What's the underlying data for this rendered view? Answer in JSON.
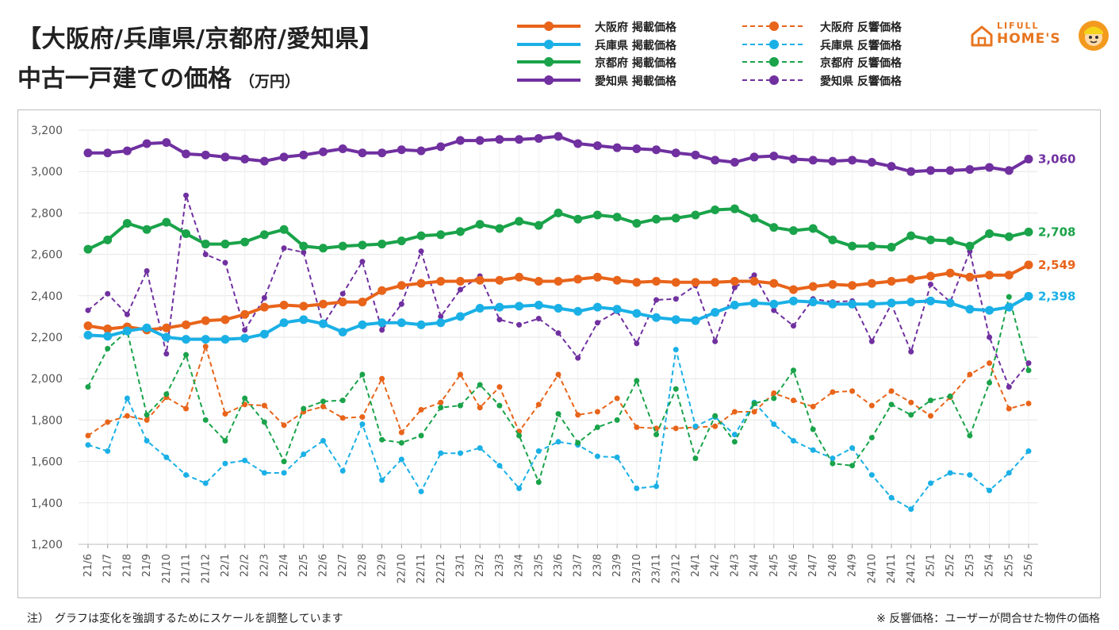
{
  "header": {
    "title_line1": "【大阪府/兵庫県/京都府/愛知県】",
    "title_line2": "中古一戸建ての価格",
    "unit": "（万円）"
  },
  "logo": {
    "top": "LIFULL",
    "main": "HOME'S"
  },
  "footnotes": {
    "left": "注）　グラフは変化を強調するためにスケールを調整しています",
    "right": "※ 反響価格：ユーザーが問合せた物件の価格"
  },
  "colors": {
    "osaka": "#e8641a",
    "hyogo": "#1ab0e6",
    "kyoto": "#1aa34a",
    "aichi": "#7030a0",
    "grid": "#e6e6e6"
  },
  "chart_data": {
    "type": "line",
    "ylim": [
      1200,
      3200
    ],
    "yticks": [
      1200,
      1400,
      1600,
      1800,
      2000,
      2200,
      2400,
      2600,
      2800,
      3000,
      3200
    ],
    "categories": [
      "21/6",
      "21/7",
      "21/8",
      "21/9",
      "21/10",
      "21/11",
      "21/12",
      "22/1",
      "22/2",
      "22/3",
      "22/4",
      "22/5",
      "22/6",
      "22/7",
      "22/8",
      "22/9",
      "22/10",
      "22/11",
      "22/12",
      "23/1",
      "23/2",
      "23/3",
      "23/4",
      "23/5",
      "23/6",
      "23/7",
      "23/8",
      "23/9",
      "23/10",
      "23/11",
      "23/12",
      "24/1",
      "24/2",
      "24/3",
      "24/4",
      "24/5",
      "24/6",
      "24/7",
      "24/8",
      "24/9",
      "24/10",
      "24/11",
      "24/12",
      "25/1",
      "25/2",
      "25/3",
      "25/4",
      "25/5",
      "25/6"
    ],
    "series": [
      {
        "name": "大阪府 掲載価格",
        "key": "osaka",
        "style": "solid",
        "end_label": "2,549",
        "values": [
          2255,
          2240,
          2250,
          2235,
          2245,
          2260,
          2280,
          2285,
          2310,
          2345,
          2355,
          2350,
          2360,
          2370,
          2370,
          2425,
          2450,
          2460,
          2470,
          2470,
          2475,
          2475,
          2490,
          2470,
          2470,
          2480,
          2490,
          2475,
          2465,
          2470,
          2465,
          2465,
          2465,
          2470,
          2470,
          2460,
          2430,
          2445,
          2455,
          2450,
          2460,
          2470,
          2480,
          2495,
          2510,
          2490,
          2500,
          2500,
          2549
        ]
      },
      {
        "name": "兵庫県 掲載価格",
        "key": "hyogo",
        "style": "solid",
        "end_label": "2,398",
        "values": [
          2210,
          2205,
          2230,
          2245,
          2200,
          2190,
          2190,
          2190,
          2195,
          2215,
          2270,
          2285,
          2265,
          2225,
          2260,
          2270,
          2270,
          2260,
          2270,
          2300,
          2340,
          2345,
          2350,
          2355,
          2340,
          2325,
          2345,
          2335,
          2315,
          2295,
          2285,
          2280,
          2320,
          2355,
          2365,
          2360,
          2375,
          2370,
          2360,
          2360,
          2360,
          2365,
          2370,
          2375,
          2365,
          2335,
          2330,
          2345,
          2398
        ]
      },
      {
        "name": "京都府 掲載価格",
        "key": "kyoto",
        "style": "solid",
        "end_label": "2,708",
        "values": [
          2625,
          2670,
          2750,
          2720,
          2755,
          2700,
          2650,
          2650,
          2660,
          2695,
          2720,
          2640,
          2630,
          2640,
          2645,
          2650,
          2665,
          2690,
          2695,
          2710,
          2745,
          2725,
          2760,
          2740,
          2800,
          2770,
          2790,
          2780,
          2750,
          2770,
          2775,
          2790,
          2815,
          2820,
          2775,
          2730,
          2715,
          2725,
          2670,
          2640,
          2640,
          2635,
          2690,
          2670,
          2665,
          2640,
          2700,
          2685,
          2708
        ]
      },
      {
        "name": "愛知県 掲載価格",
        "key": "aichi",
        "style": "solid",
        "end_label": "3,060",
        "values": [
          3090,
          3090,
          3100,
          3135,
          3140,
          3085,
          3080,
          3070,
          3060,
          3050,
          3070,
          3080,
          3095,
          3110,
          3090,
          3090,
          3105,
          3100,
          3120,
          3150,
          3150,
          3155,
          3155,
          3160,
          3170,
          3135,
          3125,
          3115,
          3110,
          3105,
          3090,
          3080,
          3055,
          3045,
          3070,
          3075,
          3060,
          3055,
          3050,
          3055,
          3045,
          3025,
          3000,
          3005,
          3005,
          3010,
          3020,
          3005,
          3060
        ]
      },
      {
        "name": "大阪府 反響価格",
        "key": "osaka",
        "style": "dashed",
        "values": [
          1725,
          1790,
          1820,
          1800,
          1910,
          1855,
          2155,
          1830,
          1875,
          1870,
          1775,
          1840,
          1865,
          1810,
          1815,
          2000,
          1740,
          1850,
          1885,
          2020,
          1860,
          1960,
          1745,
          1875,
          2020,
          1825,
          1840,
          1905,
          1765,
          1760,
          1760,
          1765,
          1770,
          1840,
          1840,
          1930,
          1895,
          1865,
          1935,
          1940,
          1870,
          1940,
          1885,
          1820,
          1910,
          2020,
          2075,
          1855,
          1880
        ]
      },
      {
        "name": "兵庫県 反響価格",
        "key": "hyogo",
        "style": "dashed",
        "values": [
          1680,
          1650,
          1905,
          1700,
          1620,
          1535,
          1495,
          1590,
          1605,
          1545,
          1545,
          1635,
          1700,
          1555,
          1780,
          1510,
          1610,
          1455,
          1640,
          1640,
          1665,
          1580,
          1470,
          1650,
          1695,
          1680,
          1625,
          1620,
          1470,
          1480,
          2140,
          1770,
          1815,
          1730,
          1885,
          1780,
          1700,
          1655,
          1615,
          1665,
          1535,
          1425,
          1370,
          1495,
          1545,
          1535,
          1460,
          1545,
          1650
        ]
      },
      {
        "name": "京都府 反響価格",
        "key": "kyoto",
        "style": "dashed",
        "values": [
          1960,
          2145,
          2230,
          1825,
          1925,
          2115,
          1800,
          1700,
          1905,
          1790,
          1600,
          1855,
          1890,
          1895,
          2020,
          1705,
          1690,
          1725,
          1860,
          1870,
          1970,
          1870,
          1725,
          1500,
          1830,
          1690,
          1765,
          1800,
          1990,
          1730,
          1950,
          1615,
          1820,
          1695,
          1880,
          1905,
          2040,
          1755,
          1590,
          1580,
          1715,
          1875,
          1825,
          1895,
          1915,
          1725,
          1980,
          2395,
          2040
        ]
      },
      {
        "name": "愛知県 反響価格",
        "key": "aichi",
        "style": "dashed",
        "values": [
          2330,
          2410,
          2310,
          2520,
          2120,
          2885,
          2600,
          2560,
          2235,
          2390,
          2630,
          2610,
          2260,
          2410,
          2565,
          2235,
          2360,
          2615,
          2300,
          2430,
          2495,
          2285,
          2260,
          2290,
          2220,
          2100,
          2270,
          2325,
          2170,
          2380,
          2385,
          2450,
          2180,
          2440,
          2500,
          2330,
          2255,
          2385,
          2370,
          2375,
          2180,
          2360,
          2130,
          2455,
          2370,
          2615,
          2200,
          1960,
          2075
        ]
      }
    ]
  }
}
